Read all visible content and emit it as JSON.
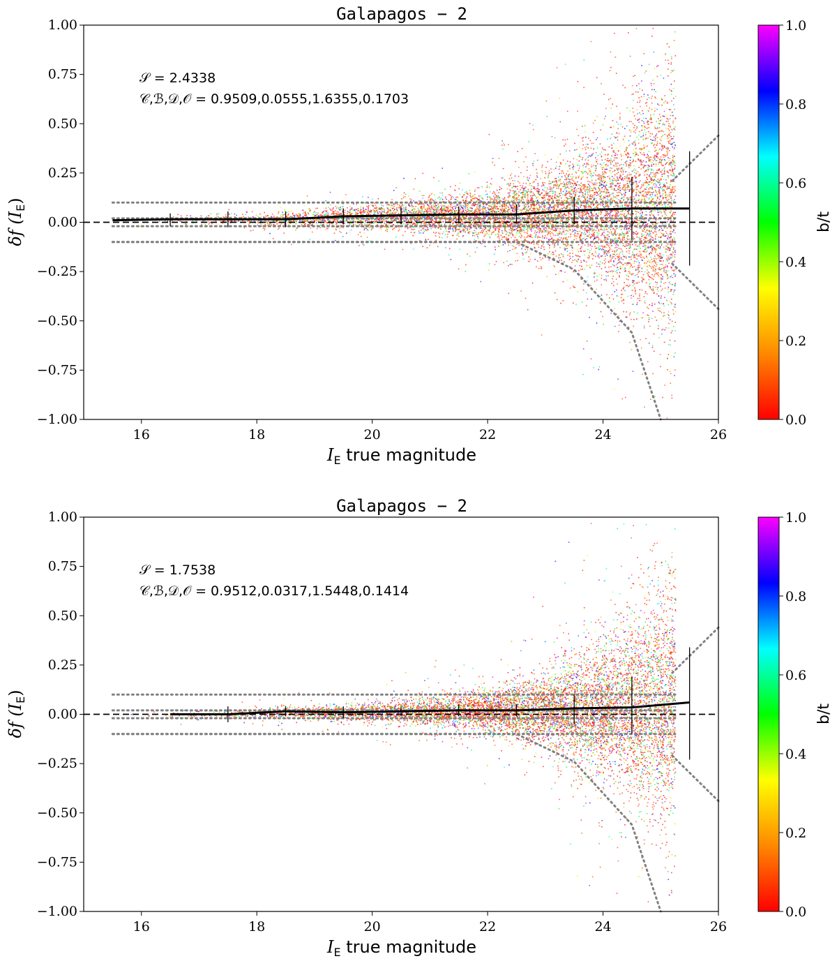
{
  "chart_data": [
    {
      "type": "scatter",
      "title": "Galapagos − 2",
      "xlabel": "I_E true magnitude",
      "xlabel_main": "I",
      "xlabel_sub": "E",
      "xlabel_rest": " true magnitude",
      "ylabel": "δf (I_E)",
      "ylabel_prefix": "δf (",
      "ylabel_var": "I",
      "ylabel_sub": "E",
      "ylabel_suffix": ")",
      "xlim": [
        15,
        26
      ],
      "ylim": [
        -1.0,
        1.0
      ],
      "xticks": [
        16,
        18,
        20,
        22,
        24,
        26
      ],
      "yticks": [
        1.0,
        0.75,
        0.5,
        0.25,
        0.0,
        -0.25,
        -0.5,
        -0.75,
        -1.0
      ],
      "ytick_labels": [
        "1.00",
        "0.75",
        "0.50",
        "0.25",
        "0.00",
        "−0.25",
        "−0.50",
        "−0.75",
        "−1.00"
      ],
      "annotation_S": "𝒮 = 2.4338",
      "annotation_CBDO": "𝒞,ℬ,𝒟,𝒪 = 0.9509,0.0555,1.6355,0.1703",
      "median_line": {
        "x": [
          15.5,
          16.5,
          17.5,
          18.5,
          19.5,
          20.5,
          21.5,
          22.5,
          23.5,
          24.5,
          25.5
        ],
        "y": [
          0.01,
          0.015,
          0.015,
          0.015,
          0.03,
          0.035,
          0.04,
          0.04,
          0.06,
          0.07,
          0.07
        ]
      },
      "error_bars": {
        "x": [
          16.5,
          17.5,
          18.5,
          19.5,
          20.5,
          21.5,
          22.5,
          23.5,
          24.5,
          25.5
        ],
        "low": [
          -0.02,
          -0.025,
          -0.025,
          -0.01,
          -0.01,
          -0.005,
          0.0,
          -0.01,
          -0.09,
          -0.22
        ],
        "high": [
          0.045,
          0.055,
          0.055,
          0.07,
          0.07,
          0.08,
          0.09,
          0.13,
          0.23,
          0.36
        ]
      },
      "reference_lines": {
        "dashed_zero": 0.0,
        "dotted_flat": [
          0.1,
          0.02,
          -0.02,
          -0.1
        ],
        "dotted_envelope_x": [
          15.5,
          22.5,
          23.5,
          24.5,
          25.0
        ],
        "dotted_envelope_lower": [
          -0.1,
          -0.1,
          -0.24,
          -0.56,
          -1.0
        ],
        "dotted_outer_x": [
          25.2,
          26.0
        ],
        "dotted_outer_upper": [
          0.21,
          0.44
        ],
        "dotted_outer_lower": [
          -0.21,
          -0.44
        ]
      },
      "scatter_cloud": {
        "x_range": [
          15.5,
          25.25
        ],
        "color_variable": "b/t",
        "spread_sigma": {
          "x": [
            15.5,
            18,
            20,
            22,
            23,
            24,
            25.25
          ],
          "s": [
            0.012,
            0.015,
            0.03,
            0.06,
            0.1,
            0.18,
            0.35
          ]
        },
        "n_points": 9000
      },
      "colorbar": {
        "label": "b/t",
        "ticks": [
          "0.0",
          "0.2",
          "0.4",
          "0.6",
          "0.8",
          "1.0"
        ],
        "range": [
          0.0,
          1.0
        ],
        "colors": [
          "#ff0000",
          "#ff8800",
          "#ffff00",
          "#00ff00",
          "#00ffff",
          "#0000ff",
          "#ff00ff"
        ]
      }
    },
    {
      "type": "scatter",
      "title": "Galapagos − 2",
      "xlabel": "I_E true magnitude",
      "xlabel_main": "I",
      "xlabel_sub": "E",
      "xlabel_rest": " true magnitude",
      "ylabel": "δf (I_E)",
      "ylabel_prefix": "δf (",
      "ylabel_var": "I",
      "ylabel_sub": "E",
      "ylabel_suffix": ")",
      "xlim": [
        15,
        26
      ],
      "ylim": [
        -1.0,
        1.0
      ],
      "xticks": [
        16,
        18,
        20,
        22,
        24,
        26
      ],
      "yticks": [
        1.0,
        0.75,
        0.5,
        0.25,
        0.0,
        -0.25,
        -0.5,
        -0.75,
        -1.0
      ],
      "ytick_labels": [
        "1.00",
        "0.75",
        "0.50",
        "0.25",
        "0.00",
        "−0.25",
        "−0.50",
        "−0.75",
        "−1.00"
      ],
      "annotation_S": "𝒮 = 1.7538",
      "annotation_CBDO": "𝒞,ℬ,𝒟,𝒪 = 0.9512,0.0317,1.5448,0.1414",
      "median_line": {
        "x": [
          16.5,
          17.5,
          18.5,
          19.5,
          20.5,
          21.5,
          22.5,
          23.5,
          24.5,
          25.5
        ],
        "y": [
          0.0,
          0.0,
          0.015,
          0.01,
          0.015,
          0.02,
          0.02,
          0.03,
          0.035,
          0.06
        ]
      },
      "error_bars": {
        "x": [
          17.5,
          18.5,
          19.5,
          20.5,
          21.5,
          22.5,
          23.5,
          24.5,
          25.5
        ],
        "low": [
          -0.04,
          -0.01,
          -0.02,
          -0.01,
          -0.01,
          -0.01,
          -0.05,
          -0.1,
          -0.23
        ],
        "high": [
          0.04,
          0.04,
          0.04,
          0.04,
          0.05,
          0.05,
          0.1,
          0.19,
          0.34
        ]
      },
      "reference_lines": {
        "dashed_zero": 0.0,
        "dotted_flat": [
          0.1,
          0.02,
          -0.02,
          -0.1
        ],
        "dotted_envelope_x": [
          15.5,
          22.5,
          23.5,
          24.5,
          25.0
        ],
        "dotted_envelope_lower": [
          -0.1,
          -0.1,
          -0.24,
          -0.56,
          -1.0
        ],
        "dotted_outer_x": [
          25.2,
          26.0
        ],
        "dotted_outer_upper": [
          0.21,
          0.44
        ],
        "dotted_outer_lower": [
          -0.21,
          -0.44
        ]
      },
      "scatter_cloud": {
        "x_range": [
          15.5,
          25.25
        ],
        "color_variable": "b/t",
        "spread_sigma": {
          "x": [
            15.5,
            18,
            20,
            22,
            23,
            24,
            25.25
          ],
          "s": [
            0.01,
            0.012,
            0.022,
            0.05,
            0.09,
            0.17,
            0.33
          ]
        },
        "n_points": 9000
      },
      "colorbar": {
        "label": "b/t",
        "ticks": [
          "0.0",
          "0.2",
          "0.4",
          "0.6",
          "0.8",
          "1.0"
        ],
        "range": [
          0.0,
          1.0
        ],
        "colors": [
          "#ff0000",
          "#ff8800",
          "#ffff00",
          "#00ff00",
          "#00ffff",
          "#0000ff",
          "#ff00ff"
        ]
      }
    }
  ]
}
